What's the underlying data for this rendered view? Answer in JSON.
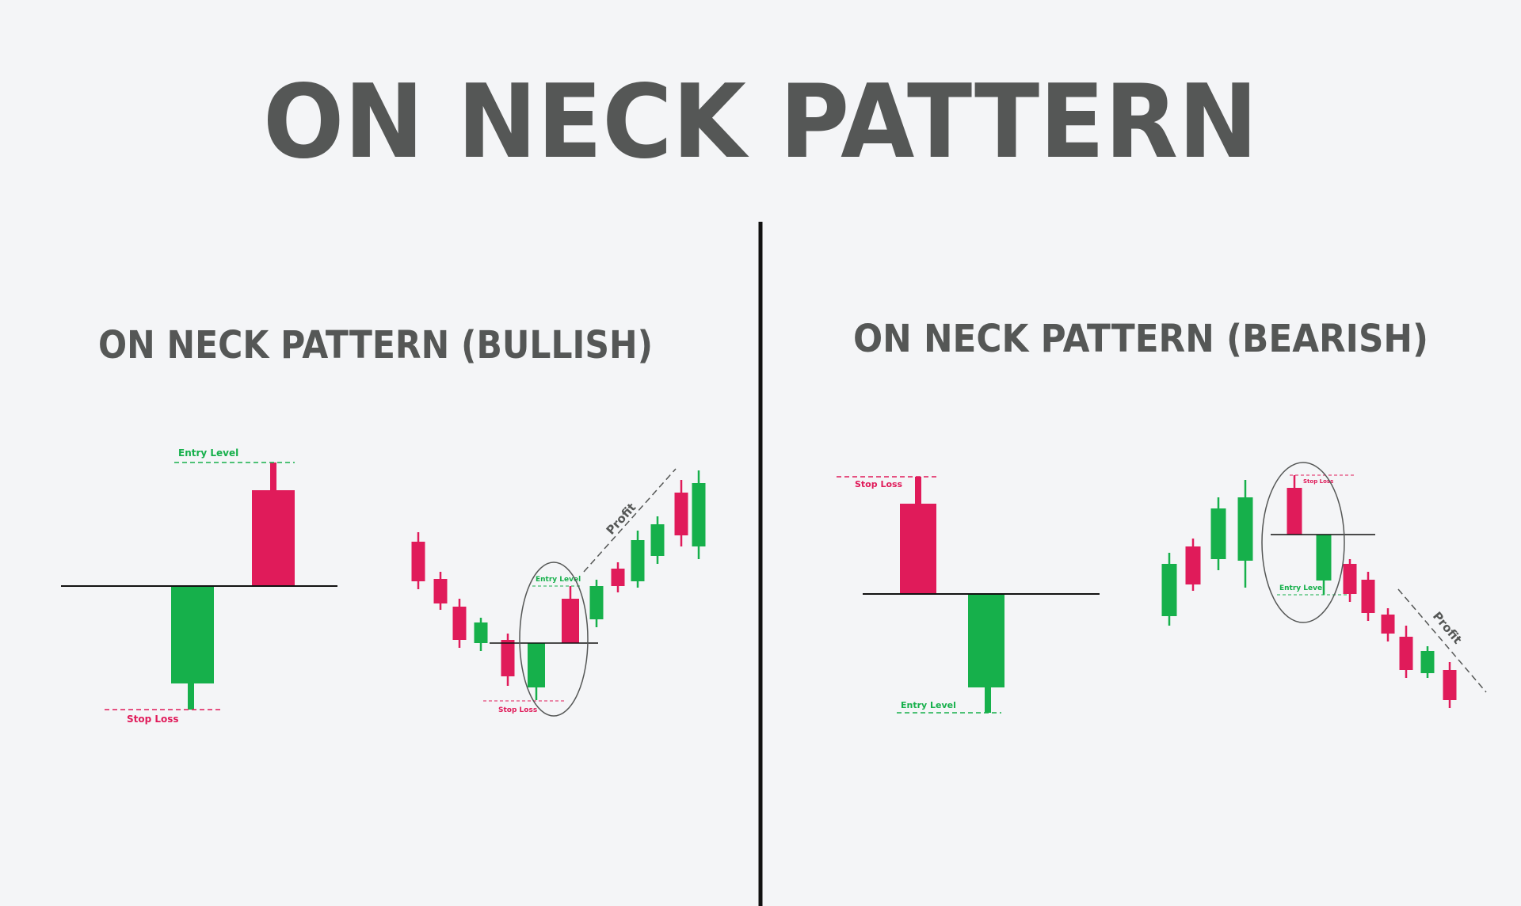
{
  "title": "ON NECK PATTERN",
  "colors": {
    "bullish": "#16b04b",
    "bearish": "#e01b5a",
    "text": "#555756",
    "line": "#111111",
    "background": "#f4f5f7"
  },
  "bullish": {
    "subtitle": "ON NECK PATTERN (BULLISH)",
    "closeup": {
      "entry_label": "Entry Level",
      "stop_label": "Stop Loss"
    },
    "example": {
      "entry_label": "Entry Level",
      "stop_label": "Stop Loss",
      "profit_label": "Profit"
    }
  },
  "bearish": {
    "subtitle": "ON NECK PATTERN (BEARISH)",
    "closeup": {
      "entry_label": "Entry Level",
      "stop_label": "Stop Loss"
    },
    "example": {
      "entry_label": "Entry Level",
      "stop_label": "Stop Loss",
      "profit_label": "Profit"
    }
  }
}
